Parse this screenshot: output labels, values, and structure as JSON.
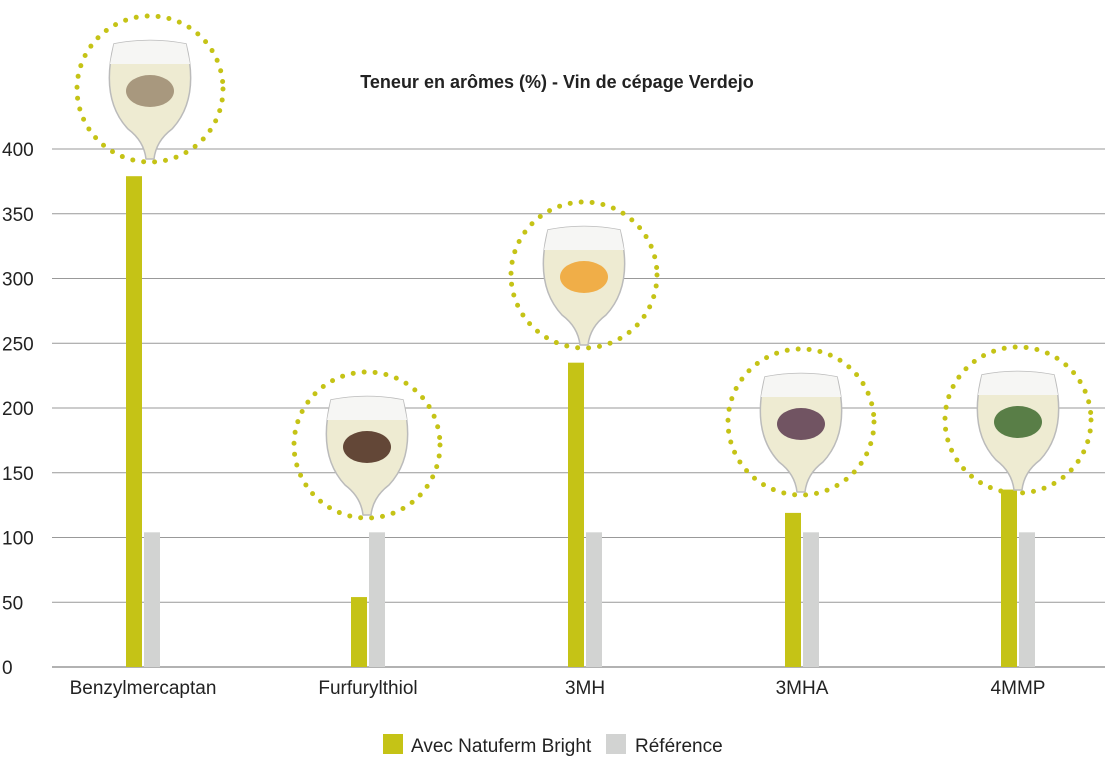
{
  "chart_data": {
    "type": "bar",
    "title": "Teneur en arômes (%) - Vin de cépage Verdejo",
    "categories": [
      "Benzylmercaptan",
      "Furfurylthiol",
      "3MH",
      "3MHA",
      "4MMP"
    ],
    "series": [
      {
        "name": "Avec Natuferm Bright",
        "color": "#c5c316",
        "values": [
          379,
          54,
          235,
          119,
          137
        ]
      },
      {
        "name": "Référence",
        "color": "#d2d3d2",
        "values": [
          104,
          104,
          104,
          104,
          104
        ]
      }
    ],
    "ylim": [
      0,
      400
    ],
    "yticks": [
      "0",
      "50",
      "100",
      "150",
      "200",
      "250",
      "300",
      "350",
      "400"
    ],
    "grid": true,
    "legend": "bottom",
    "illustrations": [
      "oak-wood-glass-icon",
      "coffee-beans-glass-icon",
      "citrus-glass-icon",
      "passion-fruit-glass-icon",
      "blackcurrant-leaves-glass-icon"
    ]
  }
}
